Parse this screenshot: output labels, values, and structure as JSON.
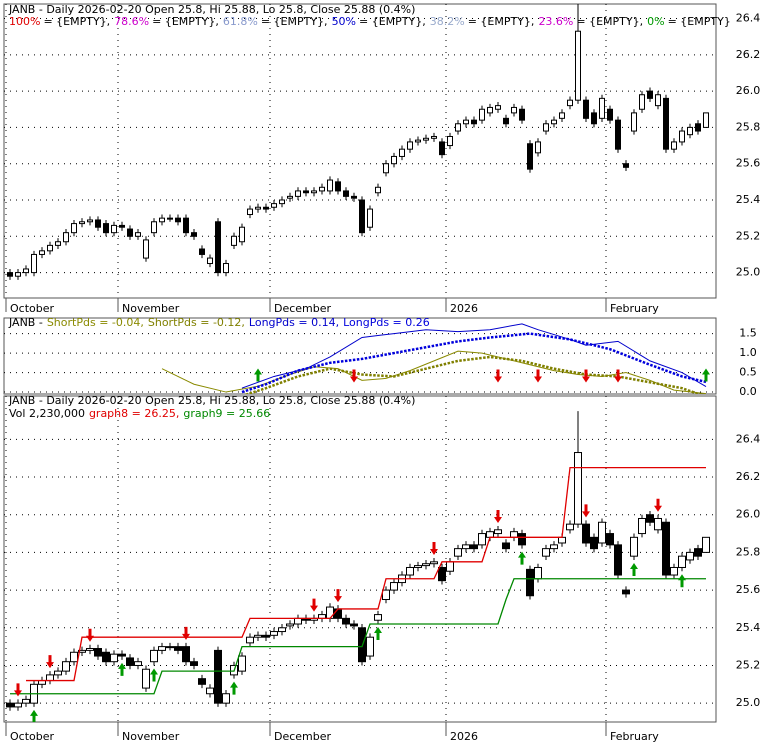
{
  "chart_data": [
    {
      "type": "candlestick",
      "title": "JANB - Daily 2026-02-20 Open 25.8, Hi 25.88, Lo 25.8, Close 25.88 (0.4%)",
      "fib_levels": [
        {
          "name": "100%",
          "color": "#e00000",
          "text": "= {EMPTY},"
        },
        {
          "name": "78.6%",
          "color": "#cc00cc",
          "text": "= {EMPTY},"
        },
        {
          "name": "61.8%",
          "color": "#8899cc",
          "text": "= {EMPTY},"
        },
        {
          "name": "50%",
          "color": "#0000cc",
          "text": "= {EMPTY},"
        },
        {
          "name": "38.2%",
          "color": "#99aacc",
          "text": "= {EMPTY},"
        },
        {
          "name": "23.6%",
          "color": "#cc00cc",
          "text": "= {EMPTY},"
        },
        {
          "name": "0%",
          "color": "#009900",
          "text": "= {EMPTY}"
        }
      ],
      "categories": [
        "October",
        null,
        null,
        null,
        null,
        null,
        null,
        null,
        null,
        null,
        null,
        null,
        null,
        null,
        "November",
        null,
        null,
        null,
        null,
        null,
        null,
        null,
        null,
        null,
        null,
        null,
        null,
        null,
        null,
        null,
        null,
        null,
        null,
        "December",
        null,
        null,
        null,
        null,
        null,
        null,
        null,
        null,
        null,
        null,
        null,
        null,
        null,
        null,
        null,
        null,
        null,
        null,
        null,
        null,
        null,
        "2026",
        null,
        null,
        null,
        null,
        null,
        null,
        null,
        null,
        null,
        null,
        null,
        null,
        null,
        null,
        null,
        null,
        null,
        null,
        null,
        "February",
        null,
        null,
        null,
        null,
        null,
        null,
        null,
        null,
        null,
        null,
        null,
        null
      ],
      "open": [
        25.0,
        24.98,
        25.0,
        25.0,
        25.1,
        25.12,
        25.15,
        25.17,
        25.22,
        25.27,
        25.28,
        25.29,
        25.27,
        25.22,
        25.26,
        25.24,
        25.2,
        25.08,
        25.22,
        25.28,
        25.3,
        25.3,
        25.3,
        25.22,
        25.13,
        25.05,
        25.28,
        25.0,
        25.15,
        25.17,
        25.32,
        25.35,
        25.36,
        25.36,
        25.38,
        25.41,
        25.42,
        25.45,
        25.44,
        25.45,
        25.45,
        25.5,
        25.45,
        25.42,
        25.4,
        25.25,
        25.44,
        25.55,
        25.6,
        25.64,
        25.68,
        25.72,
        25.73,
        25.74,
        25.72,
        25.7,
        25.78,
        25.82,
        25.84,
        25.84,
        25.88,
        25.9,
        25.85,
        25.88,
        25.9,
        25.71,
        25.66,
        25.78,
        25.82,
        25.85,
        25.92,
        25.95,
        25.95,
        25.88,
        25.85,
        25.9,
        25.84,
        25.6,
        25.78,
        25.9,
        26.0,
        25.92,
        25.96,
        25.68,
        25.72,
        25.76,
        25.82,
        25.8
      ],
      "high": [
        25.02,
        25.02,
        25.04,
        25.12,
        25.14,
        25.17,
        25.19,
        25.24,
        25.29,
        25.3,
        25.31,
        25.31,
        25.29,
        25.28,
        25.28,
        25.26,
        25.24,
        25.2,
        25.3,
        25.32,
        25.32,
        25.32,
        25.32,
        25.24,
        25.15,
        25.1,
        25.3,
        25.07,
        25.22,
        25.27,
        25.37,
        25.38,
        25.38,
        25.4,
        25.42,
        25.44,
        25.47,
        25.47,
        25.47,
        25.49,
        25.53,
        25.52,
        25.47,
        25.44,
        25.42,
        25.37,
        25.49,
        25.62,
        25.66,
        25.7,
        25.74,
        25.75,
        25.76,
        25.77,
        25.74,
        25.77,
        25.84,
        25.86,
        25.86,
        25.92,
        25.93,
        25.94,
        25.87,
        25.93,
        25.92,
        25.73,
        25.74,
        25.84,
        25.86,
        25.9,
        25.97,
        26.55,
        25.97,
        25.9,
        25.98,
        25.92,
        25.86,
        25.62,
        25.9,
        26.0,
        26.02,
        26.0,
        25.98,
        25.74,
        25.8,
        25.82,
        25.84,
        25.88
      ],
      "low": [
        24.96,
        24.96,
        24.98,
        24.98,
        25.08,
        25.1,
        25.13,
        25.15,
        25.2,
        25.25,
        25.26,
        25.23,
        25.2,
        25.2,
        25.23,
        25.18,
        25.18,
        25.06,
        25.2,
        25.26,
        25.28,
        25.26,
        25.2,
        25.18,
        25.08,
        25.03,
        24.98,
        24.98,
        25.13,
        25.15,
        25.3,
        25.33,
        25.33,
        25.34,
        25.36,
        25.39,
        25.4,
        25.42,
        25.42,
        25.43,
        25.43,
        25.43,
        25.4,
        25.39,
        25.2,
        25.23,
        25.42,
        25.53,
        25.58,
        25.62,
        25.66,
        25.7,
        25.71,
        25.72,
        25.63,
        25.68,
        25.76,
        25.8,
        25.8,
        25.82,
        25.86,
        25.88,
        25.8,
        25.86,
        25.82,
        25.55,
        25.64,
        25.76,
        25.8,
        25.83,
        25.9,
        25.93,
        25.83,
        25.8,
        25.83,
        25.82,
        25.66,
        25.56,
        25.76,
        25.88,
        25.94,
        25.9,
        25.66,
        25.66,
        25.7,
        25.74,
        25.76,
        25.8
      ],
      "close": [
        24.98,
        25.0,
        25.02,
        25.1,
        25.12,
        25.15,
        25.17,
        25.22,
        25.27,
        25.28,
        25.29,
        25.25,
        25.22,
        25.26,
        25.25,
        25.2,
        25.22,
        25.18,
        25.28,
        25.3,
        25.3,
        25.28,
        25.22,
        25.2,
        25.1,
        25.08,
        25.0,
        25.05,
        25.2,
        25.25,
        25.35,
        25.36,
        25.35,
        25.38,
        25.4,
        25.42,
        25.45,
        25.44,
        25.45,
        25.47,
        25.51,
        25.45,
        25.42,
        25.41,
        25.22,
        25.35,
        25.47,
        25.6,
        25.64,
        25.68,
        25.72,
        25.73,
        25.74,
        25.75,
        25.65,
        25.75,
        25.82,
        25.84,
        25.82,
        25.9,
        25.91,
        25.92,
        25.82,
        25.91,
        25.84,
        25.57,
        25.72,
        25.82,
        25.84,
        25.88,
        25.95,
        26.33,
        25.85,
        25.82,
        25.96,
        25.84,
        25.68,
        25.58,
        25.88,
        25.98,
        25.96,
        25.98,
        25.68,
        25.72,
        25.78,
        25.8,
        25.78,
        25.88
      ],
      "up_color": "#ffffff",
      "down_color": "#000000",
      "ylim": [
        24.86,
        26.48
      ],
      "yticks": [
        {
          "value": 25,
          "label": "25.0"
        },
        25.2,
        25.4,
        25.6,
        25.8,
        {
          "value": 26,
          "label": "26.0"
        },
        26.2,
        26.4
      ],
      "grid": true
    },
    {
      "type": "line",
      "legend_prefix": "JANB -",
      "series": [
        {
          "legend": "ShortPds = -0.04,",
          "color": "#8a8a00",
          "style": "solid",
          "x": [
            19,
            23,
            27,
            31,
            35,
            38,
            41,
            44,
            47,
            50,
            53,
            56,
            59,
            62,
            65,
            68,
            71,
            74,
            77,
            80,
            83,
            87
          ],
          "values": [
            0.6,
            0.2,
            0.0,
            0.15,
            0.45,
            0.65,
            0.6,
            0.3,
            0.35,
            0.55,
            0.8,
            1.05,
            1.0,
            0.85,
            0.7,
            0.55,
            0.45,
            0.4,
            0.5,
            0.3,
            0.05,
            -0.04
          ]
        },
        {
          "legend": "ShortPds = -0.12,",
          "color": "#808000",
          "style": "dotted",
          "x": [
            29,
            32,
            36,
            40,
            44,
            48,
            52,
            56,
            60,
            64,
            68,
            72,
            76,
            80,
            84,
            87
          ],
          "values": [
            -0.1,
            0.1,
            0.4,
            0.6,
            0.45,
            0.4,
            0.6,
            0.8,
            0.9,
            0.8,
            0.6,
            0.45,
            0.4,
            0.25,
            0.1,
            -0.12
          ]
        },
        {
          "legend": "LongPds = 0.14,",
          "color": "#0000cc",
          "style": "solid",
          "x": [
            29,
            33,
            37,
            40,
            44,
            48,
            52,
            56,
            60,
            64,
            66,
            70,
            72,
            76,
            80,
            84,
            87
          ],
          "values": [
            0.1,
            0.4,
            0.6,
            0.9,
            1.4,
            1.5,
            1.6,
            1.55,
            1.6,
            1.75,
            1.6,
            1.35,
            1.2,
            1.3,
            0.8,
            0.5,
            0.14
          ]
        },
        {
          "legend": "LongPds = 0.26",
          "color": "#0000dd",
          "style": "dotted",
          "x": [
            29,
            32,
            36,
            40,
            44,
            48,
            52,
            56,
            60,
            65,
            70,
            75,
            80,
            84,
            87
          ],
          "values": [
            0.0,
            0.2,
            0.55,
            0.75,
            0.85,
            1.0,
            1.15,
            1.3,
            1.4,
            1.5,
            1.35,
            1.1,
            0.7,
            0.4,
            0.26
          ]
        }
      ],
      "signals_up": [
        31,
        87
      ],
      "signals_down": [
        43,
        61,
        66,
        72,
        76
      ],
      "signal_up_color": "#009900",
      "signal_down_color": "#e00000",
      "ylim": [
        -0.05,
        1.9
      ],
      "yticks": [
        {
          "value": 0,
          "label": "0.0"
        },
        0.5,
        {
          "value": 1,
          "label": "1.0"
        },
        1.5
      ],
      "grid": true
    },
    {
      "type": "candlestick",
      "title": "JANB - Daily 2026-02-20 Open 25.8, Hi 25.88, Lo 25.8, Close 25.88 (0.4%)",
      "volume_text": "Vol 2,230,000",
      "categories": [
        "October",
        null,
        null,
        null,
        null,
        null,
        null,
        null,
        null,
        null,
        null,
        null,
        null,
        null,
        "November",
        null,
        null,
        null,
        null,
        null,
        null,
        null,
        null,
        null,
        null,
        null,
        null,
        null,
        null,
        null,
        null,
        null,
        null,
        "December",
        null,
        null,
        null,
        null,
        null,
        null,
        null,
        null,
        null,
        null,
        null,
        null,
        null,
        null,
        null,
        null,
        null,
        null,
        null,
        null,
        null,
        "2026",
        null,
        null,
        null,
        null,
        null,
        null,
        null,
        null,
        null,
        null,
        null,
        null,
        null,
        null,
        null,
        null,
        null,
        null,
        null,
        "February",
        null,
        null,
        null,
        null,
        null,
        null,
        null,
        null,
        null,
        null,
        null,
        null
      ],
      "series": [
        {
          "legend": "graph8 = 26.25,",
          "color": "#e00000",
          "values": [
            null,
            null,
            25.12,
            25.12,
            25.12,
            25.12,
            25.12,
            25.12,
            25.12,
            25.35,
            25.35,
            25.35,
            25.35,
            25.35,
            25.35,
            25.35,
            25.35,
            25.35,
            25.35,
            25.35,
            25.35,
            25.35,
            25.35,
            25.35,
            25.35,
            25.35,
            25.35,
            25.35,
            25.35,
            25.35,
            25.45,
            25.45,
            25.45,
            25.45,
            25.45,
            25.45,
            25.45,
            25.45,
            25.45,
            25.45,
            25.45,
            25.5,
            25.5,
            25.5,
            25.5,
            25.5,
            25.5,
            25.66,
            25.66,
            25.66,
            25.66,
            25.66,
            25.66,
            25.66,
            25.75,
            25.75,
            25.75,
            25.75,
            25.75,
            25.75,
            25.88,
            25.88,
            25.88,
            25.88,
            25.88,
            25.88,
            25.88,
            25.88,
            25.88,
            25.88,
            26.25,
            26.25,
            26.25,
            26.25,
            26.25,
            26.25,
            26.25,
            26.25,
            26.25,
            26.25,
            26.25,
            26.25,
            26.25,
            26.25,
            26.25,
            26.25,
            26.25,
            26.25
          ]
        },
        {
          "legend": "graph9 = 25.66",
          "color": "#008800",
          "values": [
            25.05,
            25.05,
            25.05,
            25.05,
            25.05,
            25.05,
            25.05,
            25.05,
            25.05,
            25.05,
            25.05,
            25.05,
            25.05,
            25.05,
            25.05,
            25.05,
            25.05,
            25.05,
            25.05,
            25.17,
            25.17,
            25.17,
            25.17,
            25.17,
            25.17,
            25.17,
            25.17,
            25.17,
            25.17,
            25.3,
            25.3,
            25.3,
            25.3,
            25.3,
            25.3,
            25.3,
            25.3,
            25.3,
            25.3,
            25.3,
            25.3,
            25.3,
            25.3,
            25.3,
            25.3,
            25.42,
            25.42,
            25.42,
            25.42,
            25.42,
            25.42,
            25.42,
            25.42,
            25.42,
            25.42,
            25.42,
            25.42,
            25.42,
            25.42,
            25.42,
            25.42,
            25.42,
            25.55,
            25.66,
            25.66,
            25.66,
            25.66,
            25.66,
            25.66,
            25.66,
            25.66,
            25.66,
            25.66,
            25.66,
            25.66,
            25.66,
            25.66,
            25.66,
            25.66,
            25.66,
            25.66,
            25.66,
            25.66,
            25.66,
            25.66,
            25.66,
            25.66,
            25.66
          ]
        }
      ],
      "signals_up": [
        3,
        14,
        18,
        28,
        46,
        64,
        78,
        84
      ],
      "signals_down": [
        1,
        5,
        10,
        22,
        38,
        41,
        53,
        61,
        72,
        81
      ],
      "signal_up_color": "#009900",
      "signal_down_color": "#e00000",
      "ylim": [
        24.9,
        26.63
      ],
      "yticks": [
        {
          "value": 25,
          "label": "25.0"
        },
        25.2,
        25.4,
        25.6,
        25.8,
        {
          "value": 26,
          "label": "26.0"
        },
        26.2,
        26.4
      ],
      "grid": true
    }
  ]
}
